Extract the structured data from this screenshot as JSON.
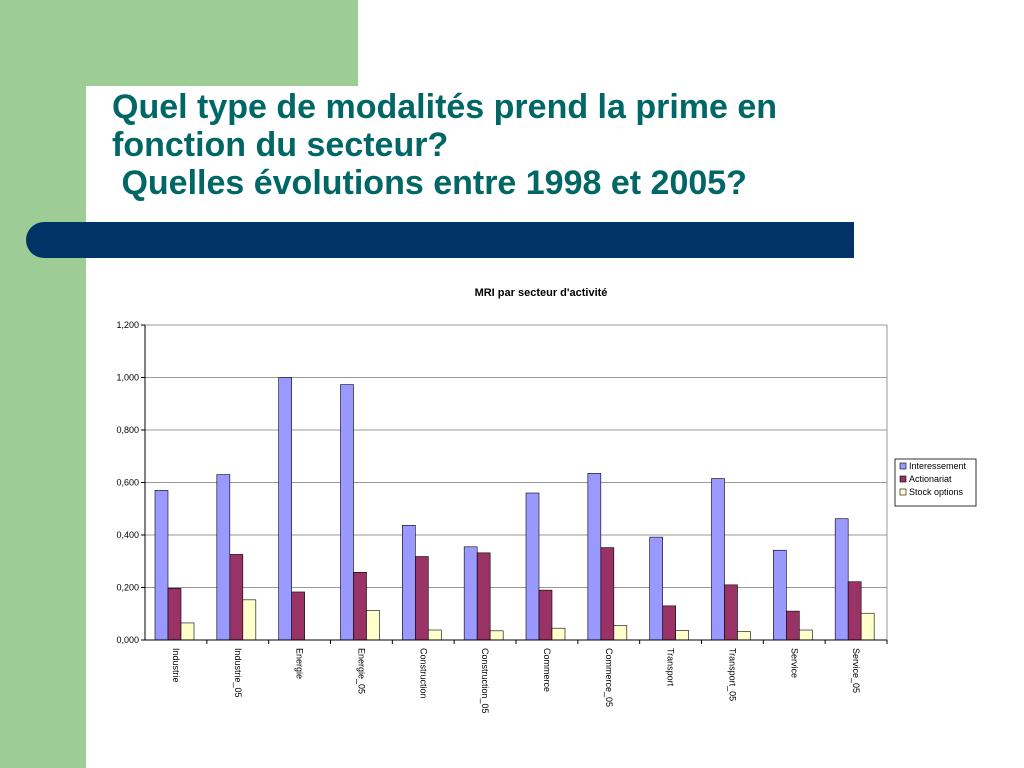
{
  "slide": {
    "title_lines": [
      "Quel type de modalités prend la prime en",
      "fonction du secteur?",
      " Quelles évolutions entre 1998 et 2005?"
    ]
  },
  "colors": {
    "green": "#9dcd95",
    "navy": "#003366",
    "title_teal": "#006666"
  },
  "chart_data": {
    "type": "bar",
    "title": "MRI par secteur d'activité",
    "categories": [
      "Industrie",
      "Industrie_05",
      "Energie",
      "Energie_05",
      "Construction",
      "Construction_05",
      "Commerce",
      "Commerce_05",
      "Transport",
      "Transport_05",
      "Service",
      "Service_05"
    ],
    "series": [
      {
        "name": "Interessement",
        "color": "#9999ff",
        "values": [
          0.57,
          0.63,
          1.0,
          0.973,
          0.437,
          0.355,
          0.56,
          0.635,
          0.392,
          0.615,
          0.342,
          0.462
        ]
      },
      {
        "name": "Actionariat",
        "color": "#993366",
        "values": [
          0.197,
          0.326,
          0.183,
          0.258,
          0.318,
          0.332,
          0.19,
          0.352,
          0.13,
          0.21,
          0.11,
          0.222
        ]
      },
      {
        "name": "Stock options",
        "color": "#ffffcc",
        "values": [
          0.065,
          0.153,
          0.0,
          0.113,
          0.038,
          0.035,
          0.045,
          0.055,
          0.036,
          0.032,
          0.038,
          0.102
        ]
      }
    ],
    "ylim": [
      0,
      1.2
    ],
    "yticks": [
      "0,000",
      "0,200",
      "0,400",
      "0,600",
      "0,800",
      "1,000",
      "1,200"
    ],
    "ytick_values": [
      0,
      0.2,
      0.4,
      0.6,
      0.8,
      1.0,
      1.2
    ],
    "grid": true,
    "legend_position": "right"
  }
}
